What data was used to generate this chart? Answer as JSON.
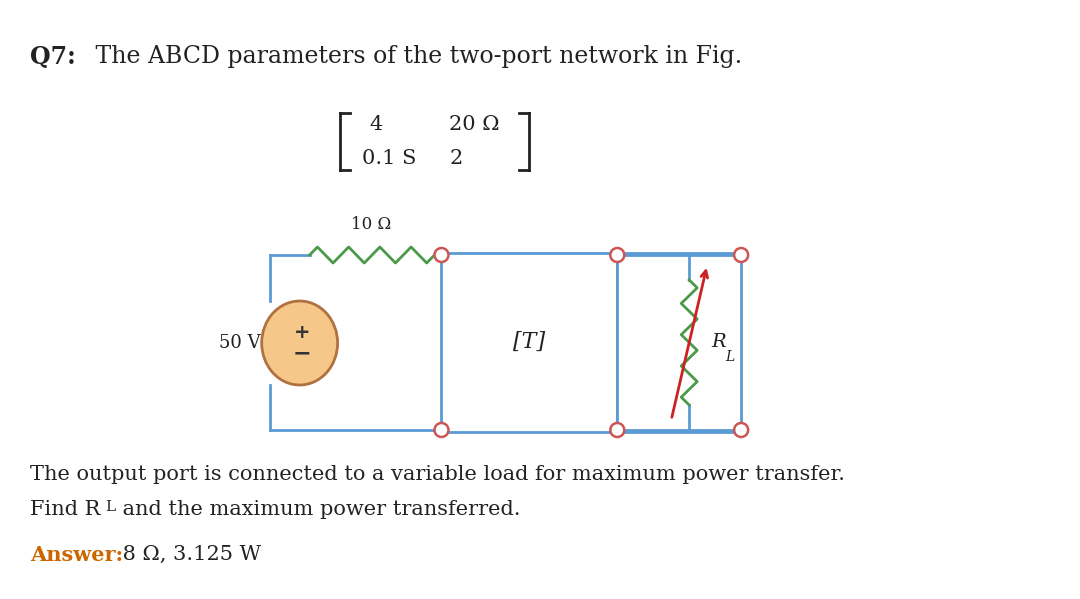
{
  "title_bold": "Q7:",
  "title_normal": " The ABCD parameters of the two-port network in Fig.",
  "matrix_row1_left": "4",
  "matrix_row1_right": "20 Ω",
  "matrix_row2_left": "0.1 S",
  "matrix_row2_right": "2",
  "resistor_label": "10 Ω",
  "source_label": "50 V",
  "twoport_label": "[T]",
  "load_label": "R",
  "load_label_sub": "L",
  "body_line1": "The output port is connected to a variable load for maximum power transfer.",
  "body_line2": "Find Rʟ and the maximum power transferred.",
  "answer_bold": "Answer:",
  "answer_value": " 8 Ω, 3.125 W",
  "bg_color": "#ffffff",
  "text_color": "#222222",
  "answer_color": "#cc6600",
  "circuit_color": "#5b9bd5",
  "resistor_color_10": "#4a9a4a",
  "resistor_color_rl": "#4a9a4a",
  "arrow_color": "#cc2222",
  "source_fill": "#f5c88a",
  "source_edge": "#b07040",
  "node_color": "#cc5555",
  "wire_color": "#5b9bd5",
  "font_size_title": 17,
  "font_size_body": 15,
  "font_size_answer": 15,
  "font_size_matrix": 15,
  "font_size_circuit": 12
}
